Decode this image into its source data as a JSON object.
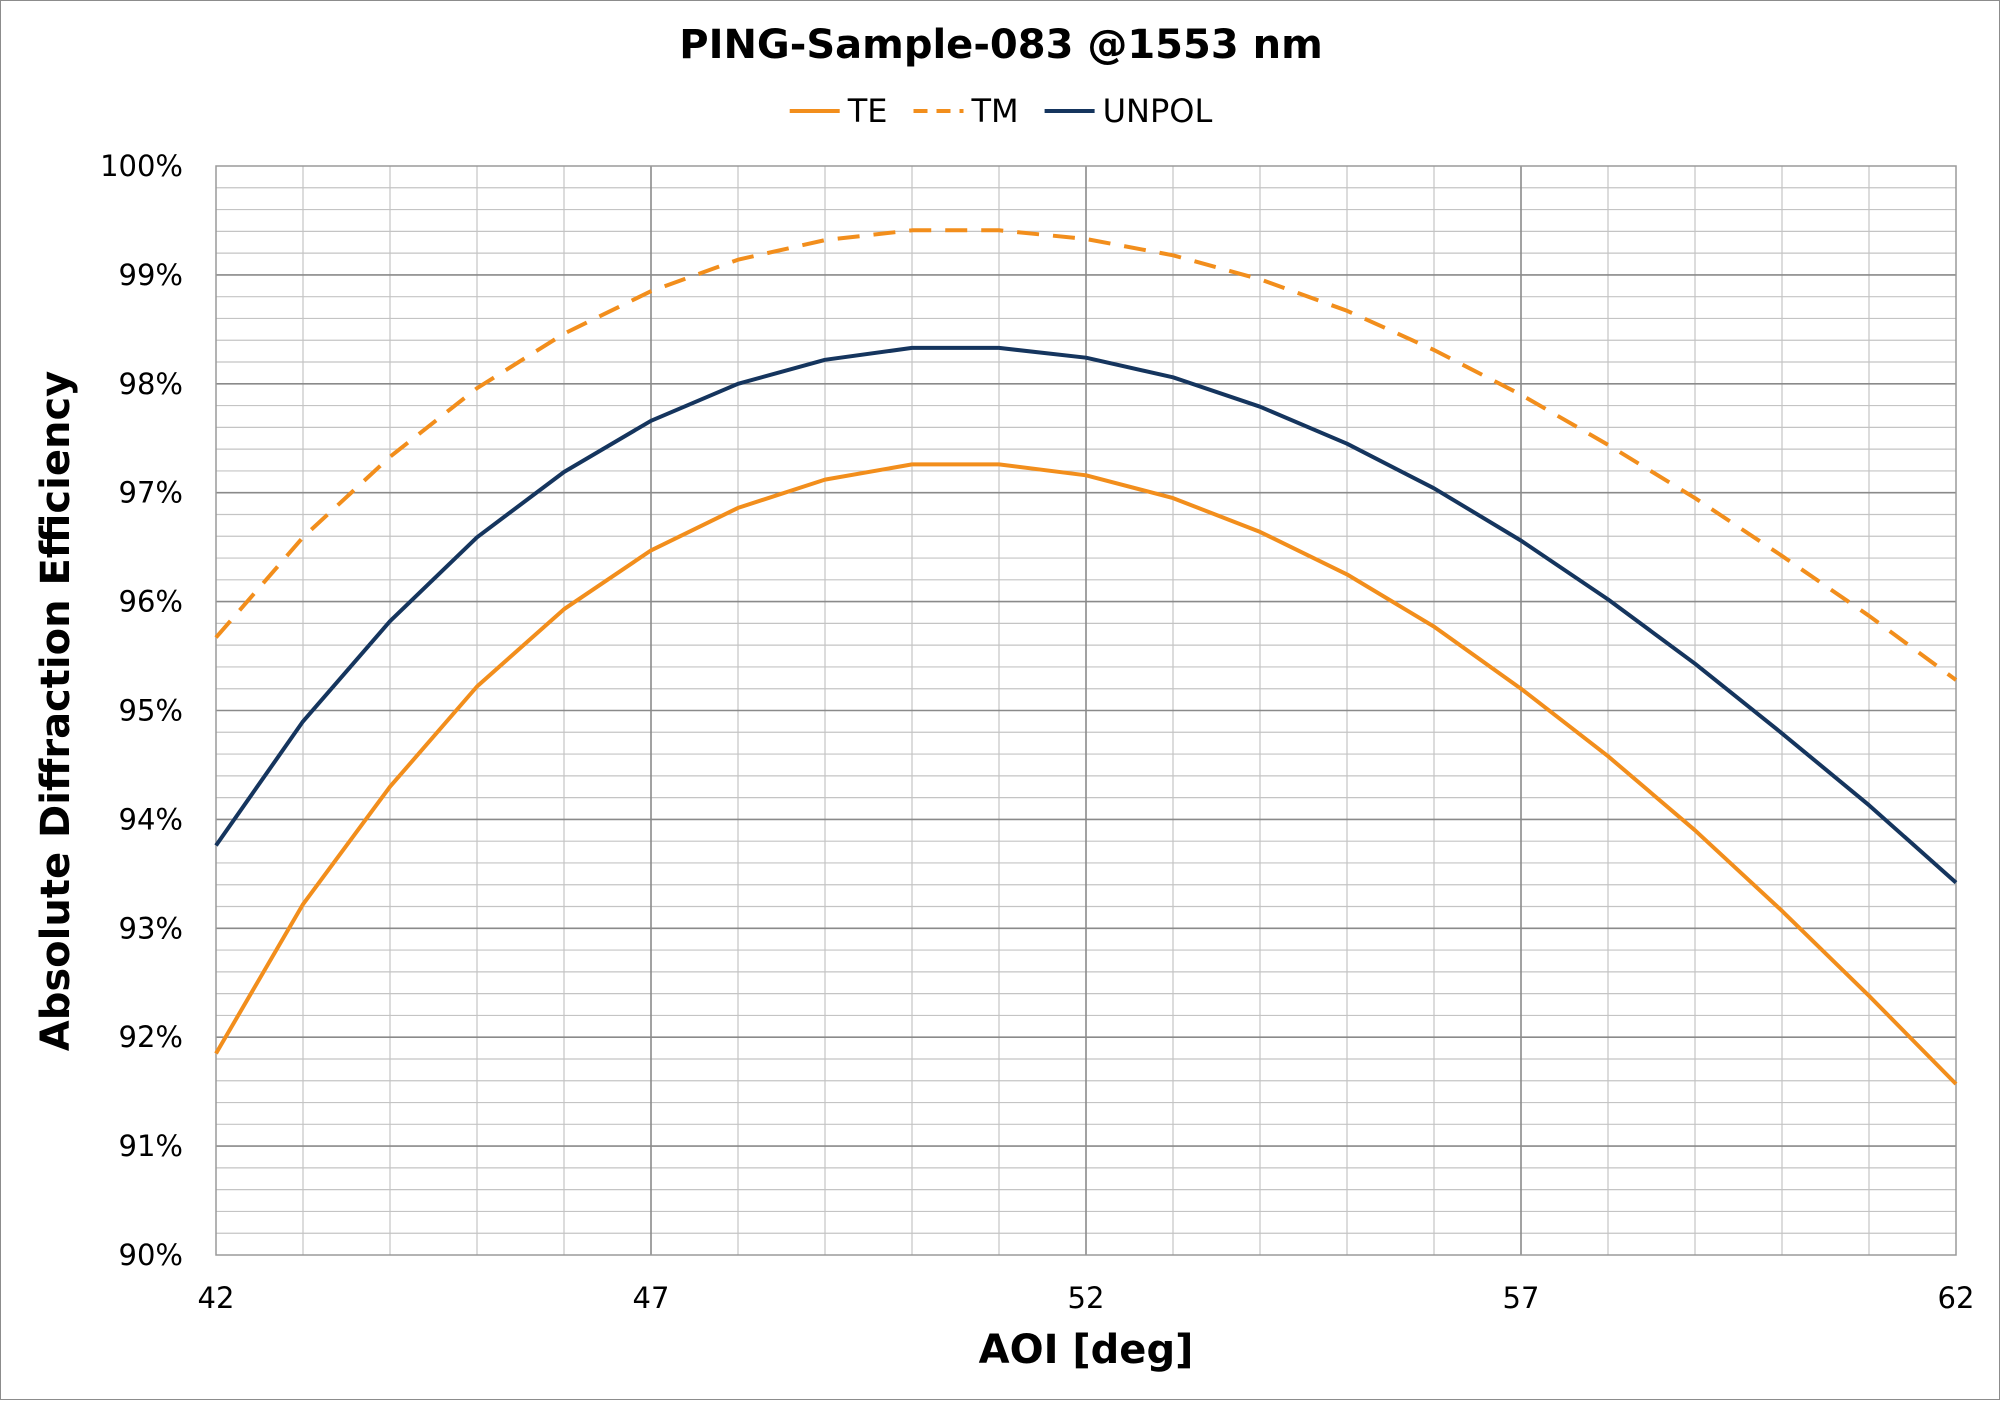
{
  "chart_data": {
    "type": "line",
    "title": "PING-Sample-083 @1553 nm",
    "xlabel": "AOI [deg]",
    "ylabel": "Absolute Diffraction Efficiency",
    "xlim": [
      42,
      62
    ],
    "ylim": [
      90,
      100
    ],
    "x_ticks": [
      "42",
      "47",
      "52",
      "57",
      "62"
    ],
    "x_tick_values": [
      42,
      47,
      52,
      57,
      62
    ],
    "y_ticks": [
      "90%",
      "91%",
      "92%",
      "93%",
      "94%",
      "95%",
      "96%",
      "97%",
      "98%",
      "99%",
      "100%"
    ],
    "y_tick_values": [
      90,
      91,
      92,
      93,
      94,
      95,
      96,
      97,
      98,
      99,
      100
    ],
    "grid": true,
    "legend_position": "top",
    "x": [
      42,
      43,
      44,
      45,
      46,
      47,
      48,
      49,
      50,
      51,
      52,
      53,
      54,
      55,
      56,
      57,
      58,
      59,
      60,
      61,
      62
    ],
    "series": [
      {
        "name": "TE",
        "color": "#f28e1c",
        "style": "solid",
        "values": [
          91.85,
          93.22,
          94.3,
          95.22,
          95.93,
          96.47,
          96.86,
          97.12,
          97.26,
          97.26,
          97.16,
          96.95,
          96.64,
          96.25,
          95.77,
          95.2,
          94.58,
          93.9,
          93.16,
          92.38,
          91.57
        ]
      },
      {
        "name": "TM",
        "color": "#f28e1c",
        "style": "dashed",
        "values": [
          95.67,
          96.59,
          97.33,
          97.96,
          98.46,
          98.85,
          99.14,
          99.32,
          99.41,
          99.41,
          99.33,
          99.18,
          98.96,
          98.67,
          98.31,
          97.9,
          97.44,
          96.95,
          96.42,
          95.87,
          95.28
        ]
      },
      {
        "name": "UNPOL",
        "color": "#15355e",
        "style": "solid",
        "values": [
          93.76,
          94.9,
          95.82,
          96.59,
          97.19,
          97.66,
          98.0,
          98.22,
          98.33,
          98.33,
          98.24,
          98.06,
          97.79,
          97.45,
          97.04,
          96.56,
          96.02,
          95.43,
          94.79,
          94.13,
          93.42
        ]
      }
    ]
  }
}
